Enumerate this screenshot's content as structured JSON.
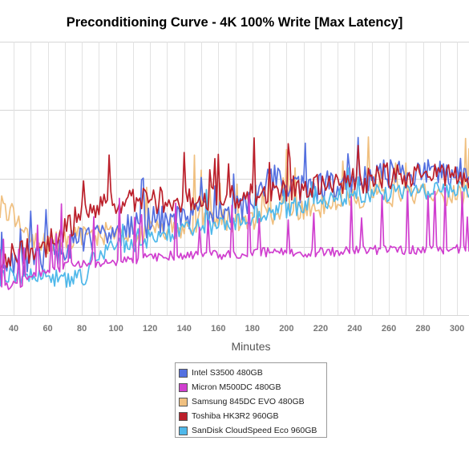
{
  "chart_data": {
    "type": "line",
    "title": "Preconditioning Curve - 4K 100% Write [Max Latency]",
    "xlabel": "Minutes",
    "ylabel": "",
    "x_ticks": [
      40,
      60,
      80,
      100,
      120,
      140,
      160,
      180,
      200,
      220,
      240,
      260,
      280,
      300
    ],
    "xlim": [
      32,
      307
    ],
    "ylim": [
      0,
      1
    ],
    "grid": true,
    "legend_position": "bottom-center",
    "series": [
      {
        "name": "Intel S3500 480GB",
        "color": "#5470e0",
        "keypoints": [
          [
            32,
            0.18
          ],
          [
            60,
            0.22
          ],
          [
            80,
            0.27
          ],
          [
            100,
            0.31
          ],
          [
            120,
            0.34
          ],
          [
            140,
            0.36
          ],
          [
            160,
            0.37
          ],
          [
            180,
            0.4
          ],
          [
            190,
            0.51
          ],
          [
            210,
            0.46
          ],
          [
            240,
            0.49
          ],
          [
            260,
            0.52
          ],
          [
            280,
            0.52
          ],
          [
            307,
            0.52
          ]
        ]
      },
      {
        "name": "Micron M500DC 480GB",
        "color": "#d03fcf",
        "keypoints": [
          [
            32,
            0.1
          ],
          [
            45,
            0.12
          ],
          [
            60,
            0.16
          ],
          [
            80,
            0.19
          ],
          [
            100,
            0.19
          ],
          [
            120,
            0.21
          ],
          [
            140,
            0.22
          ],
          [
            160,
            0.22
          ],
          [
            180,
            0.23
          ],
          [
            200,
            0.23
          ],
          [
            230,
            0.23
          ],
          [
            260,
            0.24
          ],
          [
            307,
            0.24
          ]
        ]
      },
      {
        "name": "Samsung 845DC EVO 480GB",
        "color": "#f0c080",
        "keypoints": [
          [
            32,
            0.4
          ],
          [
            40,
            0.36
          ],
          [
            50,
            0.28
          ],
          [
            60,
            0.27
          ],
          [
            80,
            0.28
          ],
          [
            100,
            0.3
          ],
          [
            120,
            0.3
          ],
          [
            140,
            0.33
          ],
          [
            160,
            0.35
          ],
          [
            180,
            0.35
          ],
          [
            200,
            0.37
          ],
          [
            240,
            0.43
          ],
          [
            270,
            0.44
          ],
          [
            307,
            0.43
          ]
        ]
      },
      {
        "name": "Toshiba HK3R2 960GB",
        "color": "#bb1f2a",
        "keypoints": [
          [
            32,
            0.22
          ],
          [
            50,
            0.24
          ],
          [
            60,
            0.26
          ],
          [
            80,
            0.37
          ],
          [
            100,
            0.41
          ],
          [
            120,
            0.42
          ],
          [
            140,
            0.42
          ],
          [
            160,
            0.42
          ],
          [
            180,
            0.44
          ],
          [
            200,
            0.46
          ],
          [
            220,
            0.47
          ],
          [
            240,
            0.49
          ],
          [
            260,
            0.51
          ],
          [
            280,
            0.51
          ],
          [
            307,
            0.51
          ]
        ]
      },
      {
        "name": "SanDisk CloudSpeed Eco 960GB",
        "color": "#4fb8ea",
        "keypoints": [
          [
            32,
            0.14
          ],
          [
            60,
            0.14
          ],
          [
            75,
            0.13
          ],
          [
            84,
            0.14
          ],
          [
            86,
            0.2
          ],
          [
            100,
            0.25
          ],
          [
            120,
            0.28
          ],
          [
            140,
            0.31
          ],
          [
            160,
            0.33
          ],
          [
            180,
            0.36
          ],
          [
            200,
            0.39
          ],
          [
            220,
            0.42
          ],
          [
            240,
            0.44
          ],
          [
            260,
            0.45
          ],
          [
            280,
            0.46
          ],
          [
            307,
            0.46
          ]
        ]
      }
    ]
  }
}
